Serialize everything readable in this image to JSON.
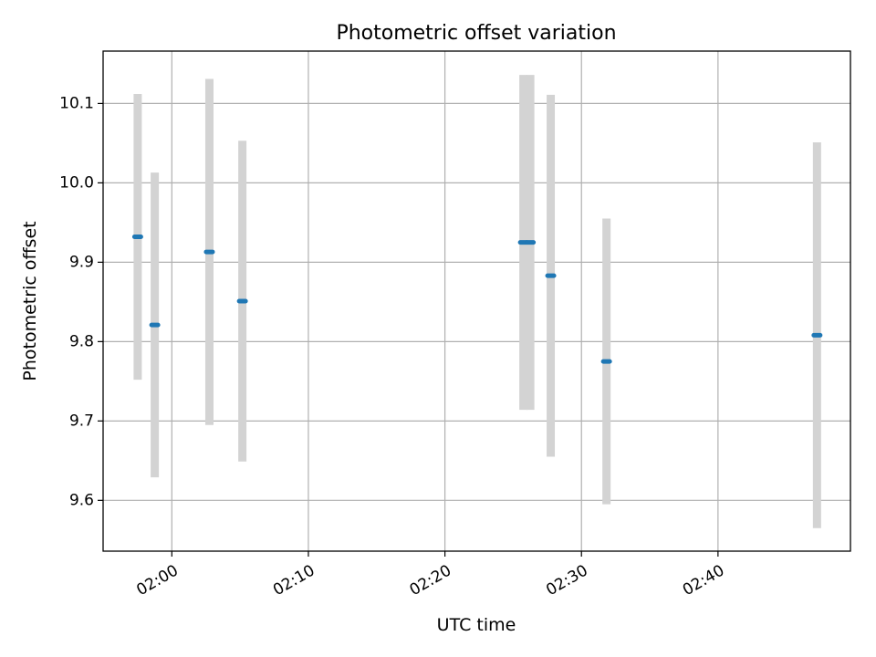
{
  "chart_data": {
    "type": "scatter",
    "title": "Photometric offset variation",
    "xlabel": "UTC time",
    "ylabel": "Photometric offset",
    "x_ticks": [
      "02:00",
      "02:10",
      "02:20",
      "02:30",
      "02:40"
    ],
    "y_ticks": [
      9.6,
      9.7,
      9.8,
      9.9,
      10.0,
      10.1
    ],
    "y_tick_labels": [
      "9.6",
      "9.7",
      "9.8",
      "9.9",
      "10.0",
      "10.1"
    ],
    "xlim": [
      "01:54:58",
      "02:49:42"
    ],
    "ylim": [
      9.536,
      10.166
    ],
    "grid": true,
    "colors": {
      "marker": "#1f77b4",
      "errorbar": "#d3d3d3",
      "grid": "#b0b0b0",
      "axes": "#000000"
    },
    "series": [
      {
        "points": [
          {
            "x": "01:57:30",
            "y": 9.932,
            "err": 0.18
          },
          {
            "x": "01:58:45",
            "y": 9.821,
            "err": 0.192
          },
          {
            "x": "02:02:45",
            "y": 9.913,
            "err": 0.218
          },
          {
            "x": "02:05:10",
            "y": 9.851,
            "err": 0.202
          },
          {
            "x": "02:25:45",
            "y": 9.925,
            "err": 0.211
          },
          {
            "x": "02:26:15",
            "y": 9.925,
            "err": 0.211
          },
          {
            "x": "02:27:45",
            "y": 9.883,
            "err": 0.228
          },
          {
            "x": "02:31:50",
            "y": 9.775,
            "err": 0.18
          },
          {
            "x": "02:47:15",
            "y": 9.808,
            "err": 0.243
          }
        ]
      }
    ]
  }
}
